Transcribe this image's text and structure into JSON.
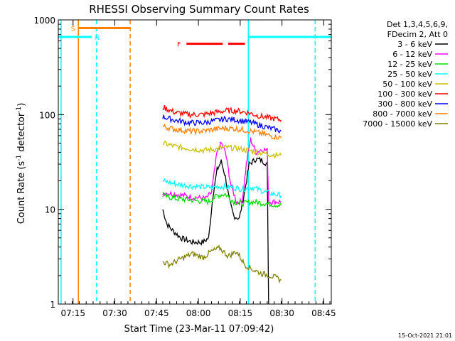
{
  "chart_data": {
    "type": "line",
    "title": "RHESSI Observing Summary Count Rates",
    "xlabel": "Start Time (23-Mar-11 07:09:42)",
    "ylabel_main": "Count Rate (s",
    "ylabel_sup1": "-1",
    "ylabel_mid": " detector",
    "ylabel_sup2": "-1",
    "ylabel_end": ")",
    "x_range_min": [
      0,
      98
    ],
    "x_ticks": [
      {
        "label": "07:15",
        "min": 5.3
      },
      {
        "label": "07:30",
        "min": 20.3
      },
      {
        "label": "07:45",
        "min": 35.3
      },
      {
        "label": "08:00",
        "min": 50.3
      },
      {
        "label": "08:15",
        "min": 65.3
      },
      {
        "label": "08:30",
        "min": 80.3
      },
      {
        "label": "08:45",
        "min": 95.3
      }
    ],
    "y_log": true,
    "y_range": [
      1,
      1000
    ],
    "y_ticks": [
      {
        "label": "1",
        "value": 1
      },
      {
        "label": "10",
        "value": 10
      },
      {
        "label": "100",
        "value": 100
      },
      {
        "label": "1000",
        "value": 1000
      }
    ],
    "legend_header": [
      "Det 1,3,4,5,6,9,",
      "FDecim 2, Att 0"
    ],
    "legend_position": "right",
    "series": [
      {
        "name": "3 - 6 keV",
        "color": "#000000",
        "points": [
          [
            37.5,
            10
          ],
          [
            39,
            7
          ],
          [
            41,
            6
          ],
          [
            44,
            5
          ],
          [
            48,
            4.5
          ],
          [
            52,
            4.5
          ],
          [
            54,
            5
          ],
          [
            55.5,
            14
          ],
          [
            57,
            26
          ],
          [
            58.5,
            32
          ],
          [
            60,
            22
          ],
          [
            61.5,
            12
          ],
          [
            63,
            8.5
          ],
          [
            65,
            8
          ],
          [
            67,
            16
          ],
          [
            68.5,
            30
          ],
          [
            71,
            34
          ],
          [
            73,
            33
          ],
          [
            75,
            30
          ],
          [
            75.5,
            0.8
          ]
        ]
      },
      {
        "name": "6 - 12 keV",
        "color": "#ff00ff",
        "points": [
          [
            37.5,
            15
          ],
          [
            42,
            14.5
          ],
          [
            48,
            13.5
          ],
          [
            53,
            13
          ],
          [
            55,
            15
          ],
          [
            57,
            40
          ],
          [
            58.5,
            50
          ],
          [
            60,
            40
          ],
          [
            62,
            18
          ],
          [
            64,
            12
          ],
          [
            66,
            12
          ],
          [
            67.5,
            30
          ],
          [
            69,
            55
          ],
          [
            71,
            40
          ],
          [
            73,
            43
          ],
          [
            75,
            42
          ],
          [
            75.5,
            12
          ],
          [
            80,
            12
          ]
        ]
      },
      {
        "name": "12 - 25 keV",
        "color": "#00e000",
        "points": [
          [
            37.5,
            14
          ],
          [
            42,
            13
          ],
          [
            48,
            12.5
          ],
          [
            54,
            12
          ],
          [
            57,
            14
          ],
          [
            60,
            14.5
          ],
          [
            63,
            12
          ],
          [
            66,
            11.5
          ],
          [
            70,
            12
          ],
          [
            75,
            11.5
          ],
          [
            80,
            11
          ]
        ]
      },
      {
        "name": "25 - 50 keV",
        "color": "#00ffff",
        "points": [
          [
            37.5,
            20
          ],
          [
            42,
            18.5
          ],
          [
            48,
            17.5
          ],
          [
            54,
            17
          ],
          [
            58,
            17.5
          ],
          [
            62,
            17
          ],
          [
            66,
            16.5
          ],
          [
            70,
            17
          ],
          [
            75,
            15
          ],
          [
            80,
            14
          ]
        ]
      },
      {
        "name": "50 - 100 keV",
        "color": "#ccc000",
        "points": [
          [
            37.5,
            50
          ],
          [
            42,
            46
          ],
          [
            47,
            44
          ],
          [
            52,
            42
          ],
          [
            56,
            43
          ],
          [
            60,
            45
          ],
          [
            64,
            44
          ],
          [
            68,
            42
          ],
          [
            72,
            40
          ],
          [
            76,
            38
          ],
          [
            80,
            37
          ]
        ]
      },
      {
        "name": "100 - 300 keV",
        "color": "#ff0000",
        "points": [
          [
            37.5,
            120
          ],
          [
            42,
            105
          ],
          [
            47,
            100
          ],
          [
            52,
            100
          ],
          [
            56,
            105
          ],
          [
            60,
            110
          ],
          [
            64,
            110
          ],
          [
            68,
            105
          ],
          [
            72,
            97
          ],
          [
            76,
            92
          ],
          [
            80,
            88
          ]
        ]
      },
      {
        "name": "300 - 800 keV",
        "color": "#0000ff",
        "points": [
          [
            37.5,
            95
          ],
          [
            42,
            87
          ],
          [
            47,
            82
          ],
          [
            52,
            82
          ],
          [
            56,
            86
          ],
          [
            60,
            90
          ],
          [
            64,
            88
          ],
          [
            68,
            84
          ],
          [
            72,
            78
          ],
          [
            76,
            72
          ],
          [
            80,
            67
          ]
        ]
      },
      {
        "name": "800 - 7000 keV",
        "color": "#ff8000",
        "points": [
          [
            37.5,
            75
          ],
          [
            42,
            70
          ],
          [
            47,
            67
          ],
          [
            52,
            67
          ],
          [
            56,
            70
          ],
          [
            60,
            72
          ],
          [
            64,
            71
          ],
          [
            68,
            68
          ],
          [
            72,
            64
          ],
          [
            76,
            60
          ],
          [
            80,
            57
          ]
        ]
      },
      {
        "name": "7000 - 15000 keV",
        "color": "#808000",
        "points": [
          [
            37.5,
            2.8
          ],
          [
            40,
            2.6
          ],
          [
            44,
            3
          ],
          [
            48,
            3.4
          ],
          [
            52,
            3.1
          ],
          [
            55,
            3.6
          ],
          [
            58,
            3.9
          ],
          [
            61,
            3.2
          ],
          [
            64,
            3.6
          ],
          [
            67,
            2.6
          ],
          [
            70,
            2.3
          ],
          [
            73,
            2.1
          ],
          [
            76,
            2.0
          ],
          [
            80,
            1.8
          ]
        ]
      }
    ],
    "flags": [
      {
        "label": "S",
        "color": "#ff8000",
        "y": 820,
        "start": 7.2,
        "end": 25.8,
        "label_min": 5.3
      },
      {
        "label": "N",
        "color": "#00ffff",
        "y": 660,
        "start": 0,
        "end": 12,
        "label_min": 14
      },
      {
        "label": "F",
        "color": "#ff0000",
        "y": 560,
        "start": 46,
        "end": 59,
        "label_min": 43.3
      },
      {
        "label": "",
        "color": "#ff0000",
        "y": 560,
        "start": 61,
        "end": 67,
        "label_min": null
      },
      {
        "label": "",
        "color": "#00ffff",
        "y": 660,
        "start": 68,
        "end": 98,
        "label_min": null
      }
    ],
    "vlines": [
      {
        "min": 7.2,
        "color": "#ff8000",
        "dashed": false
      },
      {
        "min": 13.7,
        "color": "#00ffff",
        "dashed": true
      },
      {
        "min": 25.8,
        "color": "#ff8000",
        "dashed": true
      },
      {
        "min": 1.0,
        "color": "#00ffff",
        "dashed": false
      },
      {
        "min": 68.2,
        "color": "#00ffff",
        "dashed": false
      },
      {
        "min": 92.2,
        "color": "#00ffff",
        "dashed": true
      }
    ],
    "footer": "15-Oct-2021 21:01"
  }
}
